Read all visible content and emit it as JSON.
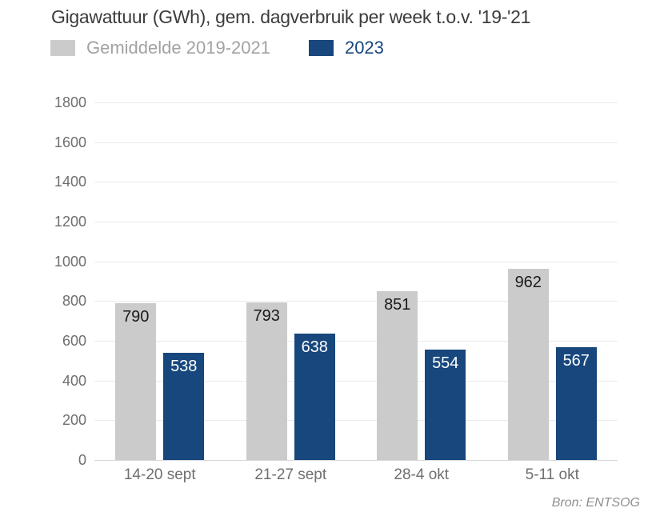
{
  "header": {
    "title": "Gigawattuur (GWh), gem. dagverbruik per week t.o.v. '19-'21",
    "legend": [
      {
        "label": "Gemiddelde 2019-2021",
        "color": "#cbcbcb",
        "text_color": "#a2a2a2"
      },
      {
        "label": "2023",
        "color": "#17477c",
        "text_color": "#17477c"
      }
    ]
  },
  "footer": {
    "source": "Bron: ENTSOG"
  },
  "chart_data": {
    "type": "bar",
    "title": "Gigawattuur (GWh), gem. dagverbruik per week t.o.v. '19-'21",
    "categories": [
      "14-20 sept",
      "21-27 sept",
      "28-4 okt",
      "5-11 okt"
    ],
    "series": [
      {
        "name": "Gemiddelde 2019-2021",
        "color": "#cbcbcb",
        "value_label_color": "#1a1a1a",
        "values": [
          790,
          793,
          851,
          962
        ]
      },
      {
        "name": "2023",
        "color": "#17477c",
        "value_label_color": "#ffffff",
        "values": [
          538,
          638,
          554,
          567
        ]
      }
    ],
    "xlabel": "",
    "ylabel": "",
    "ylim": [
      0,
      1800
    ],
    "ytick_step": 200,
    "grid": true,
    "legend_position": "top",
    "value_labels": "inside-top",
    "source": "Bron: ENTSOG"
  }
}
